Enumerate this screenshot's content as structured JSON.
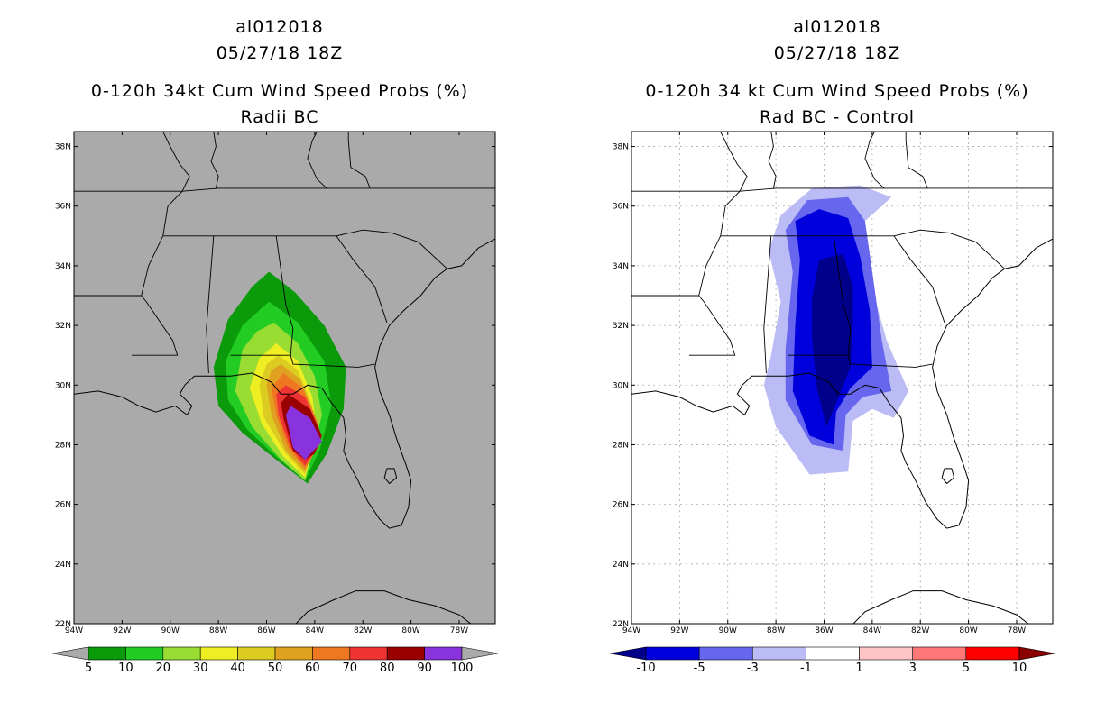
{
  "chart_data": [
    {
      "type": "filled-contour-map",
      "storm": "al012018",
      "datetime": "05/27/18 18Z",
      "title": "0-120h 34kt Cum Wind Speed Probs (%)",
      "subtitle": "Radii BC",
      "lon_range": [
        -94,
        -76.5
      ],
      "lat_range": [
        22,
        38.5
      ],
      "x_ticks": [
        "94W",
        "92W",
        "90W",
        "88W",
        "86W",
        "84W",
        "82W",
        "80W",
        "78W"
      ],
      "y_ticks": [
        "22N",
        "24N",
        "26N",
        "28N",
        "30N",
        "32N",
        "34N",
        "36N",
        "38N"
      ],
      "colorbar": {
        "levels": [
          "5",
          "10",
          "20",
          "30",
          "40",
          "50",
          "60",
          "70",
          "80",
          "90",
          "100"
        ],
        "colors": [
          "#0a9a0a",
          "#22cc22",
          "#99dd33",
          "#eeee22",
          "#dccc22",
          "#e0a020",
          "#ee7722",
          "#ee3333",
          "#990000",
          "#8833dd"
        ],
        "below_color": "#aaaaaa",
        "above_color": "#aaaaaa"
      },
      "grid": false
    },
    {
      "type": "filled-contour-map",
      "storm": "al012018",
      "datetime": "05/27/18 18Z",
      "title": "0-120h 34 kt Cum Wind Speed Probs (%)",
      "subtitle": "Rad BC - Control",
      "lon_range": [
        -94,
        -76.5
      ],
      "lat_range": [
        22,
        38.5
      ],
      "x_ticks": [
        "94W",
        "92W",
        "90W",
        "88W",
        "86W",
        "84W",
        "82W",
        "80W",
        "78W"
      ],
      "y_ticks": [
        "22N",
        "24N",
        "26N",
        "28N",
        "30N",
        "32N",
        "34N",
        "36N",
        "38N"
      ],
      "colorbar": {
        "levels": [
          "-10",
          "-5",
          "-3",
          "-1",
          "1",
          "3",
          "5",
          "10"
        ],
        "colors": [
          "#0000dd",
          "#6666ee",
          "#bbbbf5",
          "#ffffff",
          "#ffc4c4",
          "#ff7777",
          "#ff0000"
        ],
        "below_color": "#00008a",
        "above_color": "#880000"
      },
      "grid": true
    }
  ]
}
